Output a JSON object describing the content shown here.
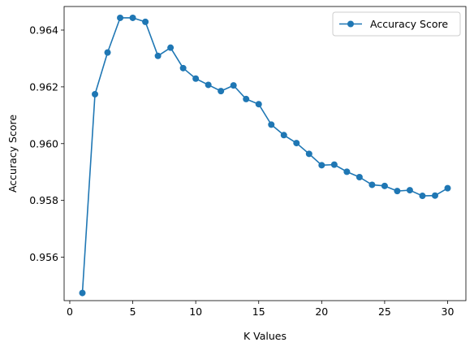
{
  "chart_data": {
    "type": "line",
    "xlabel": "K Values",
    "ylabel": "Accuracy Score",
    "xlim": [
      -0.45,
      31.45
    ],
    "ylim": [
      0.95447,
      0.96483
    ],
    "xticks": [
      0,
      5,
      10,
      15,
      20,
      25,
      30
    ],
    "xtick_labels": [
      "0",
      "5",
      "10",
      "15",
      "20",
      "25",
      "30"
    ],
    "yticks": [
      0.956,
      0.958,
      0.96,
      0.962,
      0.964
    ],
    "ytick_labels": [
      "0.956",
      "0.958",
      "0.960",
      "0.962",
      "0.964"
    ],
    "grid": false,
    "legend_position": "top-right",
    "series": [
      {
        "name": "Accuracy Score",
        "color": "#1f77b4",
        "marker": "circle",
        "x": [
          1,
          2,
          3,
          4,
          5,
          6,
          7,
          8,
          9,
          10,
          11,
          12,
          13,
          14,
          15,
          16,
          17,
          18,
          19,
          20,
          21,
          22,
          23,
          24,
          25,
          26,
          27,
          28,
          29,
          30
        ],
        "y": [
          0.95474,
          0.96174,
          0.96321,
          0.96443,
          0.96443,
          0.96429,
          0.96309,
          0.96338,
          0.96266,
          0.96229,
          0.96207,
          0.96185,
          0.96205,
          0.96157,
          0.96139,
          0.96067,
          0.9603,
          0.96002,
          0.95964,
          0.95924,
          0.95926,
          0.95901,
          0.95882,
          0.95855,
          0.95851,
          0.95833,
          0.95836,
          0.95816,
          0.95817,
          0.95843
        ]
      }
    ]
  }
}
